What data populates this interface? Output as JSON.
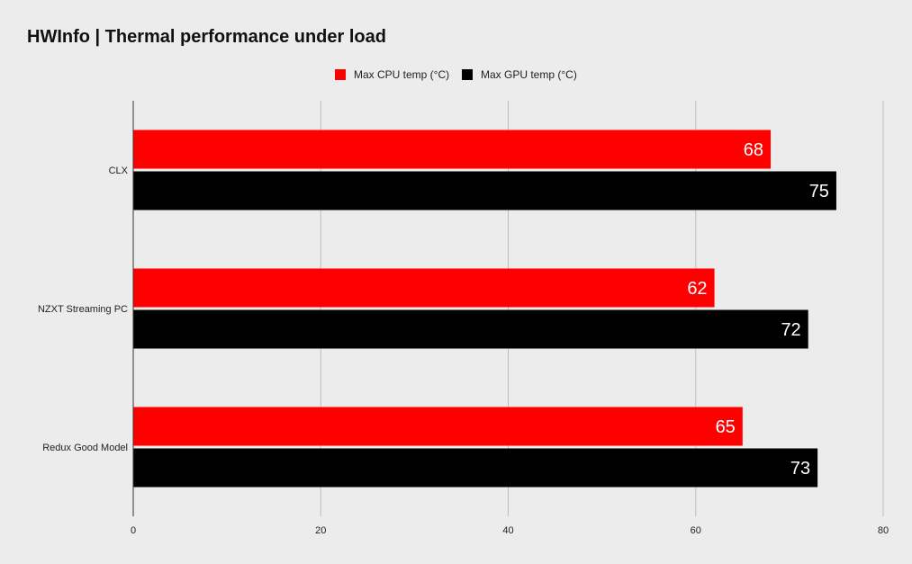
{
  "chart_data": {
    "type": "bar",
    "orientation": "horizontal",
    "title": "HWInfo | Thermal performance under load",
    "categories": [
      "CLX",
      "NZXT Streaming PC",
      "Redux Good Model"
    ],
    "series": [
      {
        "name": "Max CPU temp (°C)",
        "color": "#ff0000",
        "values": [
          68,
          62,
          65
        ]
      },
      {
        "name": "Max GPU temp (°C)",
        "color": "#000000",
        "values": [
          75,
          72,
          73
        ]
      }
    ],
    "xlim": [
      0,
      80
    ],
    "xticks": [
      0,
      20,
      40,
      60,
      80
    ],
    "xlabel": "",
    "ylabel": "",
    "grid": true,
    "legend_position": "top-center",
    "data_labels": true
  }
}
